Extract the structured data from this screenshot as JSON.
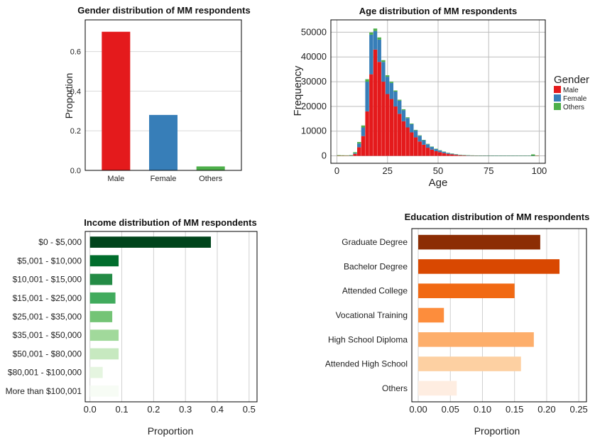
{
  "chart_data": [
    {
      "type": "bar",
      "title": "Gender distribution of MM respondents",
      "xlabel": "",
      "ylabel": "Proportion",
      "categories": [
        "Male",
        "Female",
        "Others"
      ],
      "values": [
        0.7,
        0.28,
        0.02
      ],
      "colors": [
        "#e41a1c",
        "#377eb8",
        "#4daf4a"
      ],
      "ylim": [
        0,
        0.76
      ],
      "yticks": [
        "0.0",
        "0.2",
        "0.4",
        "0.6"
      ],
      "grid": true
    },
    {
      "type": "bar",
      "stacked": true,
      "title": "Age distribution of MM respondents",
      "xlabel": "Age",
      "ylabel": "Frequency",
      "xlim": [
        -3,
        103
      ],
      "ylim": [
        -3000,
        55000
      ],
      "xticks": [
        "0",
        "25",
        "50",
        "75",
        "100"
      ],
      "yticks": [
        "0",
        "10000",
        "20000",
        "30000",
        "40000",
        "50000"
      ],
      "bin_width": 2,
      "legend": {
        "title": "Gender",
        "position": "right"
      },
      "series": [
        {
          "name": "Male",
          "color": "#e41a1c",
          "x": [
            1,
            3,
            5,
            7,
            9,
            11,
            13,
            15,
            17,
            19,
            21,
            23,
            25,
            27,
            29,
            31,
            33,
            35,
            37,
            39,
            41,
            43,
            45,
            47,
            49,
            51,
            53,
            55,
            57,
            59,
            61,
            63,
            65,
            67,
            69,
            71,
            73,
            75,
            77,
            79,
            81,
            83,
            85,
            87,
            89,
            91,
            93,
            95,
            97,
            99
          ],
          "values": [
            30,
            30,
            50,
            80,
            800,
            3500,
            8000,
            18000,
            33000,
            43000,
            38000,
            30000,
            25000,
            23000,
            20000,
            17000,
            14000,
            11500,
            9500,
            7500,
            5800,
            4500,
            3300,
            2500,
            1900,
            1500,
            1100,
            800,
            600,
            400,
            250,
            180,
            120,
            70,
            40,
            30,
            25,
            20,
            15,
            12,
            10,
            8,
            6,
            5,
            4,
            3,
            3,
            2,
            2,
            1
          ]
        },
        {
          "name": "Female",
          "color": "#377eb8",
          "x": [
            1,
            3,
            5,
            7,
            9,
            11,
            13,
            15,
            17,
            19,
            21,
            23,
            25,
            27,
            29,
            31,
            33,
            35,
            37,
            39,
            41,
            43,
            45,
            47,
            49,
            51,
            53,
            55,
            57,
            59,
            61,
            63,
            65,
            67,
            69,
            71,
            73,
            75,
            77,
            79,
            81,
            83,
            85,
            87,
            89,
            91,
            93,
            95,
            97,
            99
          ],
          "values": [
            0,
            0,
            0,
            20,
            300,
            1500,
            3500,
            12000,
            16000,
            7500,
            9000,
            8000,
            7000,
            6500,
            6000,
            5300,
            4500,
            3800,
            3300,
            2800,
            2300,
            1800,
            1400,
            1100,
            850,
            650,
            500,
            350,
            250,
            180,
            120,
            80,
            50,
            30,
            20,
            10,
            8,
            6,
            5,
            4,
            3,
            2,
            2,
            1,
            1,
            1,
            1,
            1,
            1,
            0
          ]
        },
        {
          "name": "Others",
          "color": "#4daf4a",
          "x": [
            1,
            3,
            5,
            7,
            9,
            11,
            13,
            15,
            17,
            19,
            21,
            23,
            25,
            27,
            29,
            31,
            33,
            35,
            37,
            39,
            41,
            43,
            45,
            47,
            49,
            51,
            53,
            55,
            57,
            59,
            61,
            63,
            65,
            67,
            69,
            71,
            73,
            75,
            77,
            79,
            81,
            83,
            85,
            87,
            89,
            91,
            93,
            95,
            97,
            99
          ],
          "values": [
            250,
            200,
            150,
            200,
            400,
            600,
            800,
            1000,
            900,
            1000,
            900,
            700,
            600,
            500,
            450,
            400,
            350,
            300,
            250,
            220,
            200,
            180,
            160,
            150,
            140,
            130,
            120,
            110,
            100,
            100,
            100,
            100,
            100,
            100,
            100,
            100,
            100,
            100,
            100,
            100,
            100,
            100,
            100,
            100,
            100,
            100,
            100,
            100,
            600,
            100
          ]
        }
      ]
    },
    {
      "type": "bar",
      "orientation": "horizontal",
      "title": "Income distribution of MM respondents",
      "xlabel": "Proportion",
      "ylabel": "",
      "categories": [
        "$0 - $5,000",
        "$5,001 - $10,000",
        "$10,001 - $15,000",
        "$15,001 - $25,000",
        "$25,001 - $35,000",
        "$35,001 - $50,000",
        "$50,001 - $80,000",
        "$80,001 - $100,000",
        "More than $100,001"
      ],
      "values": [
        0.38,
        0.09,
        0.07,
        0.08,
        0.07,
        0.09,
        0.09,
        0.04,
        0.09
      ],
      "colors": [
        "#00441b",
        "#006d2c",
        "#238b45",
        "#41ab5d",
        "#74c476",
        "#a1d99b",
        "#c7e9c0",
        "#e5f5e0",
        "#f7fcf5"
      ],
      "xlim": [
        -0.015,
        0.525
      ],
      "xticks": [
        "0.0",
        "0.1",
        "0.2",
        "0.3",
        "0.4",
        "0.5"
      ],
      "grid": true
    },
    {
      "type": "bar",
      "orientation": "horizontal",
      "title": "Education distribution of MM respondents",
      "xlabel": "Proportion",
      "ylabel": "",
      "categories": [
        "Graduate Degree",
        "Bachelor Degree",
        "Attended College",
        "Vocational Training",
        "High School Diploma",
        "Attended High School",
        "Others"
      ],
      "values": [
        0.19,
        0.22,
        0.15,
        0.04,
        0.18,
        0.16,
        0.06
      ],
      "colors": [
        "#8c2d04",
        "#d94801",
        "#f16913",
        "#fd8d3c",
        "#fdae6b",
        "#fdd0a2",
        "#feede1"
      ],
      "xlim": [
        -0.01,
        0.262
      ],
      "xticks": [
        "0.00",
        "0.05",
        "0.10",
        "0.15",
        "0.20",
        "0.25"
      ],
      "grid": true
    }
  ]
}
